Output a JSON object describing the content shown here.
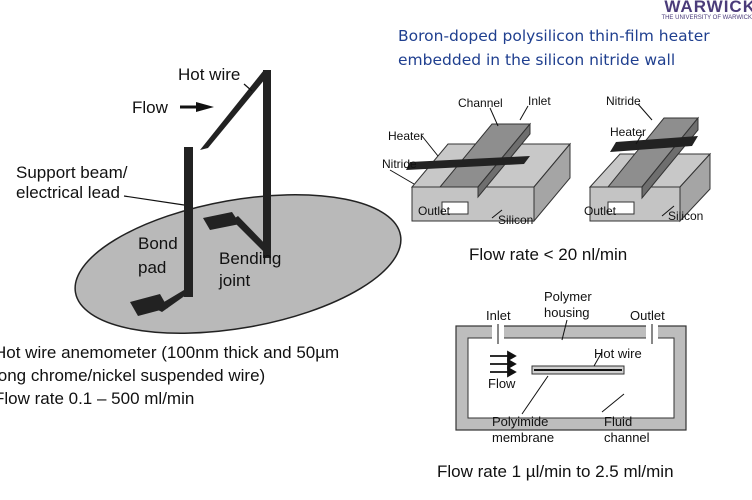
{
  "logo": {
    "main": "WARWICK",
    "sub": "THE UNIVERSITY OF WARWICK"
  },
  "sensor_description": "Boron-doped polysilicon thin-film heater embedded in the silicon nitride wall",
  "hot_wire_figure": {
    "labels": {
      "hot_wire": "Hot wire",
      "flow": "Flow",
      "support": "Support beam/",
      "electrical_lead": "electrical lead",
      "bond": "Bond",
      "pad": "pad",
      "bending": "Bending",
      "joint": "joint"
    }
  },
  "hot_wire_caption": {
    "line1": "Hot wire anemometer (100nm thick and 50µm",
    "line2": "long chrome/nickel suspended wire)",
    "line3": "Flow rate 0.1 – 500 ml/min"
  },
  "heater_figure": {
    "labels": {
      "channel": "Channel",
      "inlet": "Inlet",
      "heater_left": "Heater",
      "nitride_left": "Nitride",
      "outlet_left": "Outlet",
      "silicon_left": "Silicon",
      "nitride_right": "Nitride",
      "heater_right": "Heater",
      "outlet_right": "Outlet",
      "silicon_right": "Silicon"
    },
    "caption": "Flow rate < 20 nl/min"
  },
  "polyimide_figure": {
    "labels": {
      "polymer": "Polymer",
      "housing": "housing",
      "inlet": "Inlet",
      "outlet": "Outlet",
      "hot_wire": "Hot wire",
      "flow": "Flow",
      "polyimide": "Polyimide",
      "membrane": "membrane",
      "fluid": "Fluid",
      "channel": "channel"
    },
    "caption": "Flow rate 1 µl/min to 2.5 ml/min"
  },
  "colors": {
    "text_blue": "#1f3f8f",
    "logo_purple": "#4b3c7a",
    "diagram_gray": "#bdbdbd"
  }
}
